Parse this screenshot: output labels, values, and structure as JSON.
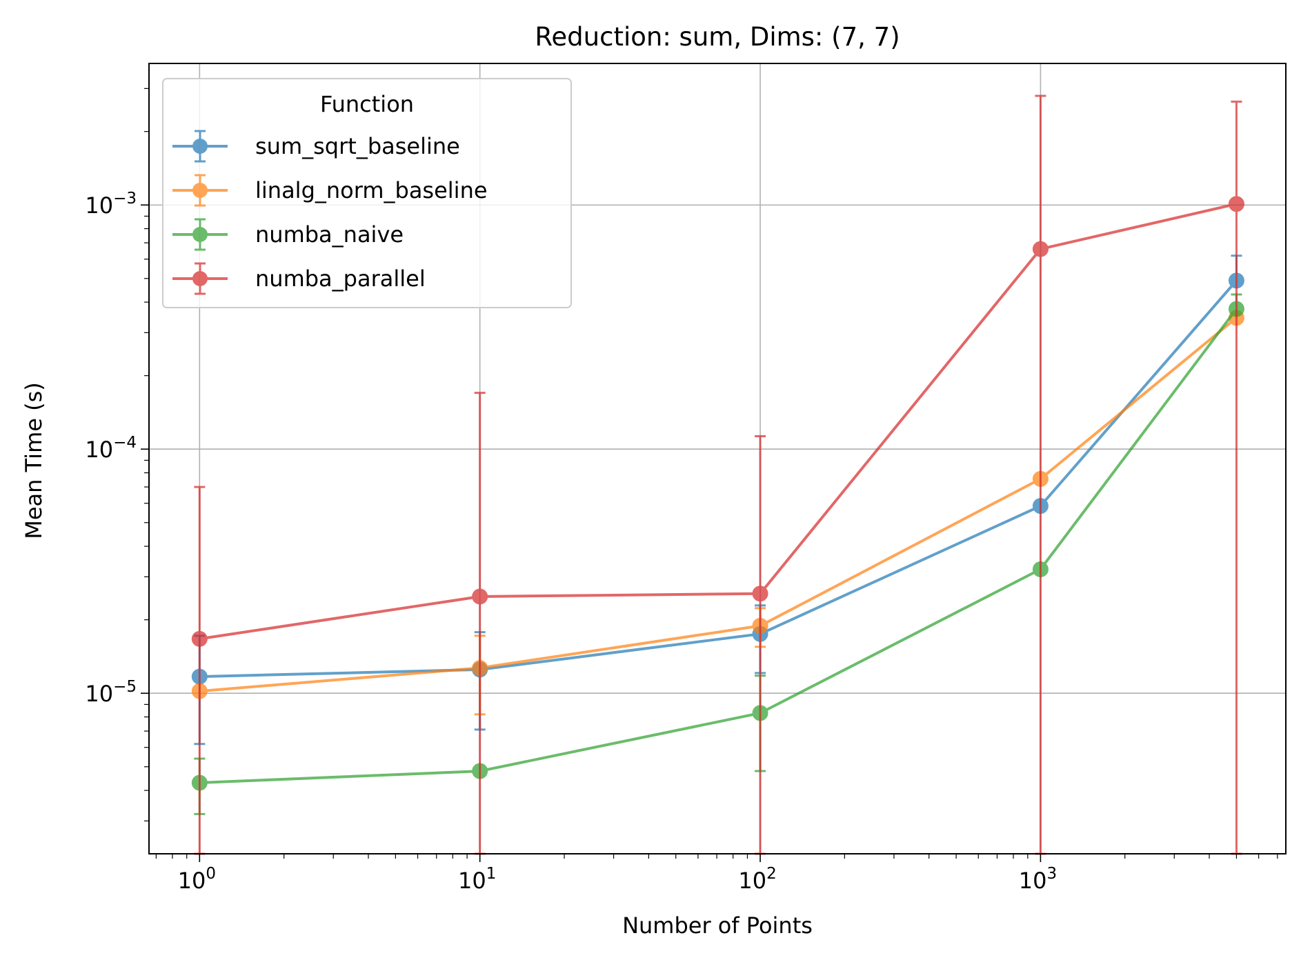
{
  "chart_data": {
    "type": "line",
    "title": "Reduction: sum, Dims: (7, 7)",
    "xlabel": "Number of Points",
    "ylabel": "Mean Time (s)",
    "xscale": "log",
    "yscale": "log",
    "xlim": [
      0.66,
      7500
    ],
    "ylim": [
      2.2e-06,
      0.0038
    ],
    "grid": true,
    "legend": {
      "title": "Function",
      "placement": "upper-left"
    },
    "x_ticks": [
      {
        "value": 1,
        "base": "10",
        "exp": "0"
      },
      {
        "value": 10,
        "base": "10",
        "exp": "1"
      },
      {
        "value": 100,
        "base": "10",
        "exp": "2"
      },
      {
        "value": 1000,
        "base": "10",
        "exp": "3"
      }
    ],
    "y_ticks": [
      {
        "value": 1e-05,
        "base": "10",
        "exp": "−5"
      },
      {
        "value": 0.0001,
        "base": "10",
        "exp": "−4"
      },
      {
        "value": 0.001,
        "base": "10",
        "exp": "−3"
      }
    ],
    "x": [
      1,
      10,
      100,
      1000,
      5000
    ],
    "series": [
      {
        "name": "sum_sqrt_baseline",
        "color": "#1f77b4",
        "values": [
          1.17e-05,
          1.25e-05,
          1.75e-05,
          5.85e-05,
          0.00049
        ],
        "err_low": [
          6.2e-06,
          7.1e-06,
          1.21e-05,
          5.85e-05,
          0.00049
        ],
        "err_high": [
          1.72e-05,
          1.78e-05,
          2.29e-05,
          5.85e-05,
          0.00062
        ]
      },
      {
        "name": "linalg_norm_baseline",
        "color": "#ff7f0e",
        "values": [
          1.02e-05,
          1.27e-05,
          1.89e-05,
          7.55e-05,
          0.000345
        ],
        "err_low": [
          1.02e-05,
          8.2e-06,
          1.55e-05,
          7.55e-05,
          0.000345
        ],
        "err_high": [
          1.02e-05,
          1.72e-05,
          2.23e-05,
          7.55e-05,
          0.000345
        ]
      },
      {
        "name": "numba_naive",
        "color": "#2ca02c",
        "values": [
          4.3e-06,
          4.8e-06,
          8.3e-06,
          3.22e-05,
          0.000375
        ],
        "err_low": [
          3.2e-06,
          4.8e-06,
          4.8e-06,
          3.22e-05,
          0.000375
        ],
        "err_high": [
          5.4e-06,
          4.8e-06,
          1.18e-05,
          3.22e-05,
          0.00043
        ]
      },
      {
        "name": "numba_parallel",
        "color": "#d62728",
        "values": [
          1.67e-05,
          2.49e-05,
          2.56e-05,
          0.00066,
          0.00101
        ],
        "err_low": [
          2.2e-06,
          2.2e-06,
          2.2e-06,
          2.2e-06,
          2.2e-06
        ],
        "err_high": [
          7e-05,
          0.00017,
          0.000113,
          0.0028,
          0.00265
        ]
      }
    ]
  }
}
